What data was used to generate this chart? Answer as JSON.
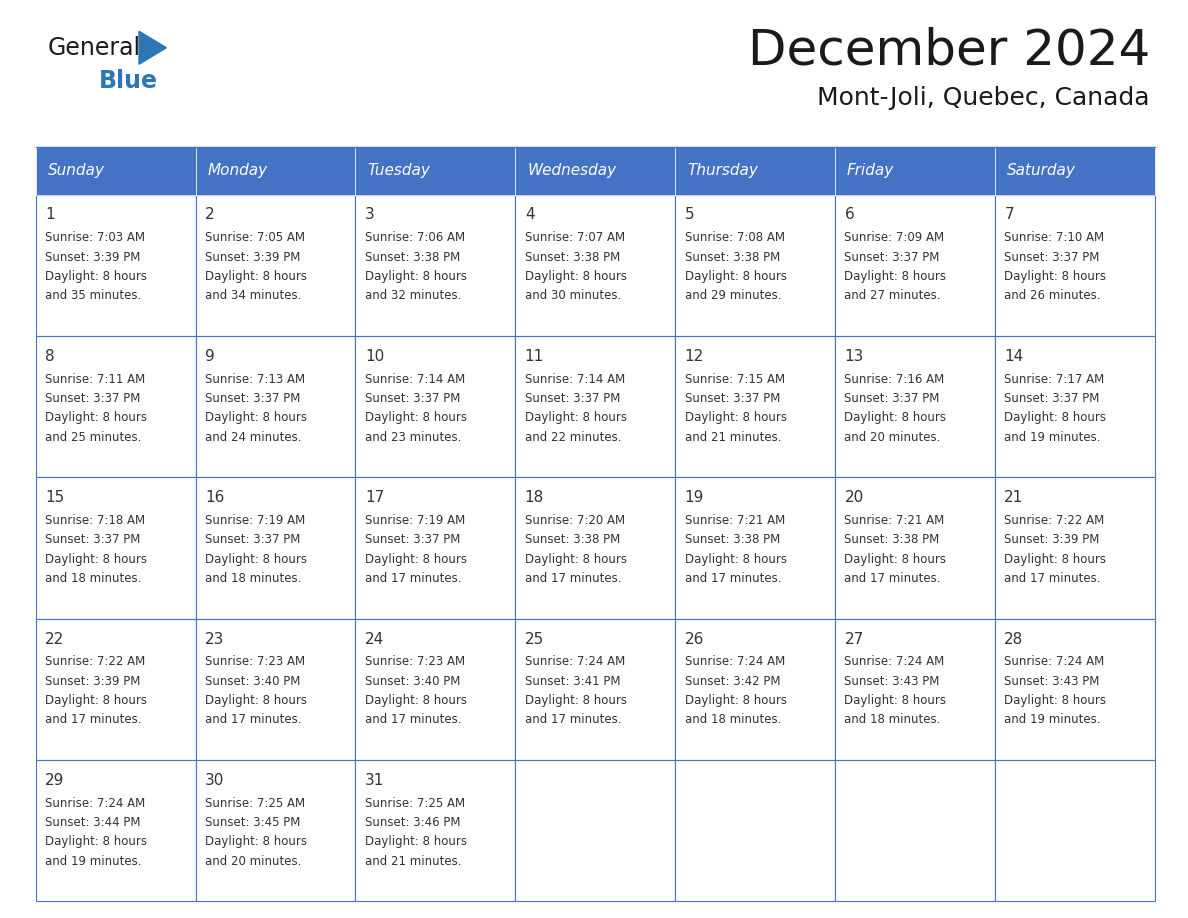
{
  "title": "December 2024",
  "subtitle": "Mont-Joli, Quebec, Canada",
  "days_of_week": [
    "Sunday",
    "Monday",
    "Tuesday",
    "Wednesday",
    "Thursday",
    "Friday",
    "Saturday"
  ],
  "header_bg": "#4472C4",
  "header_text": "#FFFFFF",
  "cell_border": "#4472C4",
  "day_num_color": "#333333",
  "info_color": "#333333",
  "title_color": "#1a1a1a",
  "logo_general_color": "#1a1a1a",
  "logo_blue_color": "#2E75B6",
  "weeks": [
    [
      {
        "day": 1,
        "sunrise": "7:03 AM",
        "sunset": "3:39 PM",
        "daylight": "8 hours and 35 minutes."
      },
      {
        "day": 2,
        "sunrise": "7:05 AM",
        "sunset": "3:39 PM",
        "daylight": "8 hours and 34 minutes."
      },
      {
        "day": 3,
        "sunrise": "7:06 AM",
        "sunset": "3:38 PM",
        "daylight": "8 hours and 32 minutes."
      },
      {
        "day": 4,
        "sunrise": "7:07 AM",
        "sunset": "3:38 PM",
        "daylight": "8 hours and 30 minutes."
      },
      {
        "day": 5,
        "sunrise": "7:08 AM",
        "sunset": "3:38 PM",
        "daylight": "8 hours and 29 minutes."
      },
      {
        "day": 6,
        "sunrise": "7:09 AM",
        "sunset": "3:37 PM",
        "daylight": "8 hours and 27 minutes."
      },
      {
        "day": 7,
        "sunrise": "7:10 AM",
        "sunset": "3:37 PM",
        "daylight": "8 hours and 26 minutes."
      }
    ],
    [
      {
        "day": 8,
        "sunrise": "7:11 AM",
        "sunset": "3:37 PM",
        "daylight": "8 hours and 25 minutes."
      },
      {
        "day": 9,
        "sunrise": "7:13 AM",
        "sunset": "3:37 PM",
        "daylight": "8 hours and 24 minutes."
      },
      {
        "day": 10,
        "sunrise": "7:14 AM",
        "sunset": "3:37 PM",
        "daylight": "8 hours and 23 minutes."
      },
      {
        "day": 11,
        "sunrise": "7:14 AM",
        "sunset": "3:37 PM",
        "daylight": "8 hours and 22 minutes."
      },
      {
        "day": 12,
        "sunrise": "7:15 AM",
        "sunset": "3:37 PM",
        "daylight": "8 hours and 21 minutes."
      },
      {
        "day": 13,
        "sunrise": "7:16 AM",
        "sunset": "3:37 PM",
        "daylight": "8 hours and 20 minutes."
      },
      {
        "day": 14,
        "sunrise": "7:17 AM",
        "sunset": "3:37 PM",
        "daylight": "8 hours and 19 minutes."
      }
    ],
    [
      {
        "day": 15,
        "sunrise": "7:18 AM",
        "sunset": "3:37 PM",
        "daylight": "8 hours and 18 minutes."
      },
      {
        "day": 16,
        "sunrise": "7:19 AM",
        "sunset": "3:37 PM",
        "daylight": "8 hours and 18 minutes."
      },
      {
        "day": 17,
        "sunrise": "7:19 AM",
        "sunset": "3:37 PM",
        "daylight": "8 hours and 17 minutes."
      },
      {
        "day": 18,
        "sunrise": "7:20 AM",
        "sunset": "3:38 PM",
        "daylight": "8 hours and 17 minutes."
      },
      {
        "day": 19,
        "sunrise": "7:21 AM",
        "sunset": "3:38 PM",
        "daylight": "8 hours and 17 minutes."
      },
      {
        "day": 20,
        "sunrise": "7:21 AM",
        "sunset": "3:38 PM",
        "daylight": "8 hours and 17 minutes."
      },
      {
        "day": 21,
        "sunrise": "7:22 AM",
        "sunset": "3:39 PM",
        "daylight": "8 hours and 17 minutes."
      }
    ],
    [
      {
        "day": 22,
        "sunrise": "7:22 AM",
        "sunset": "3:39 PM",
        "daylight": "8 hours and 17 minutes."
      },
      {
        "day": 23,
        "sunrise": "7:23 AM",
        "sunset": "3:40 PM",
        "daylight": "8 hours and 17 minutes."
      },
      {
        "day": 24,
        "sunrise": "7:23 AM",
        "sunset": "3:40 PM",
        "daylight": "8 hours and 17 minutes."
      },
      {
        "day": 25,
        "sunrise": "7:24 AM",
        "sunset": "3:41 PM",
        "daylight": "8 hours and 17 minutes."
      },
      {
        "day": 26,
        "sunrise": "7:24 AM",
        "sunset": "3:42 PM",
        "daylight": "8 hours and 18 minutes."
      },
      {
        "day": 27,
        "sunrise": "7:24 AM",
        "sunset": "3:43 PM",
        "daylight": "8 hours and 18 minutes."
      },
      {
        "day": 28,
        "sunrise": "7:24 AM",
        "sunset": "3:43 PM",
        "daylight": "8 hours and 19 minutes."
      }
    ],
    [
      {
        "day": 29,
        "sunrise": "7:24 AM",
        "sunset": "3:44 PM",
        "daylight": "8 hours and 19 minutes."
      },
      {
        "day": 30,
        "sunrise": "7:25 AM",
        "sunset": "3:45 PM",
        "daylight": "8 hours and 20 minutes."
      },
      {
        "day": 31,
        "sunrise": "7:25 AM",
        "sunset": "3:46 PM",
        "daylight": "8 hours and 21 minutes."
      },
      null,
      null,
      null,
      null
    ]
  ],
  "figsize": [
    11.88,
    9.18
  ],
  "dpi": 100
}
